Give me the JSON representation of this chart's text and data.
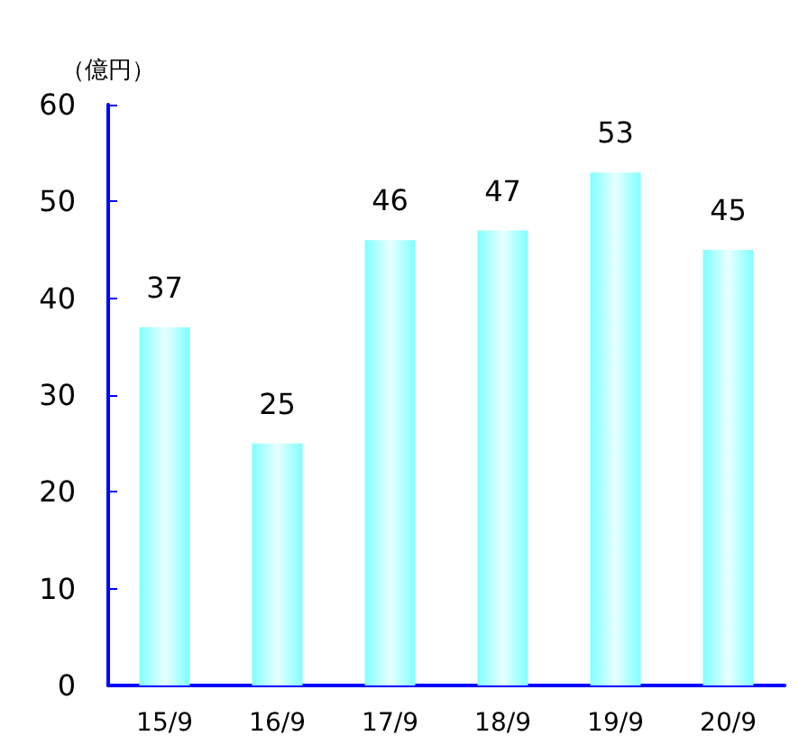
{
  "chart_data": {
    "type": "bar",
    "ylabel": "（億円）",
    "categories": [
      "15/9",
      "16/9",
      "17/9",
      "18/9",
      "19/9",
      "20/9"
    ],
    "values": [
      37,
      25,
      46,
      47,
      53,
      45
    ],
    "color": "#80ffff",
    "ylim": [
      0,
      60
    ],
    "yticks": [
      0,
      10,
      20,
      30,
      40,
      50,
      60
    ],
    "data_labels": true
  }
}
